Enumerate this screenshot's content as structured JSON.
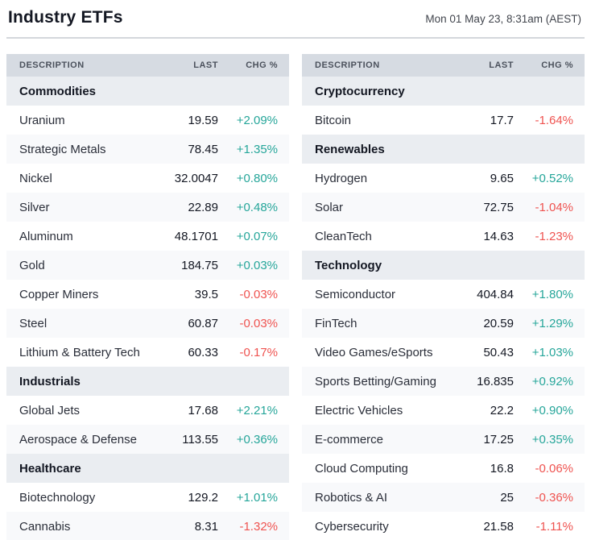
{
  "header": {
    "title": "Industry ETFs",
    "timestamp": "Mon 01 May 23, 8:31am (AEST)"
  },
  "columns": {
    "description": "DESCRIPTION",
    "last": "LAST",
    "chg": "CHG %"
  },
  "colors": {
    "positive": "#26a69a",
    "negative": "#ef5350"
  },
  "tables": [
    {
      "id": "left",
      "sections": [
        {
          "name": "Commodities",
          "rows": [
            {
              "label": "Uranium",
              "last": "19.59",
              "chg": "+2.09%",
              "direction": "up"
            },
            {
              "label": "Strategic Metals",
              "last": "78.45",
              "chg": "+1.35%",
              "direction": "up"
            },
            {
              "label": "Nickel",
              "last": "32.0047",
              "chg": "+0.80%",
              "direction": "up"
            },
            {
              "label": "Silver",
              "last": "22.89",
              "chg": "+0.48%",
              "direction": "up"
            },
            {
              "label": "Aluminum",
              "last": "48.1701",
              "chg": "+0.07%",
              "direction": "up"
            },
            {
              "label": "Gold",
              "last": "184.75",
              "chg": "+0.03%",
              "direction": "up"
            },
            {
              "label": "Copper Miners",
              "last": "39.5",
              "chg": "-0.03%",
              "direction": "down"
            },
            {
              "label": "Steel",
              "last": "60.87",
              "chg": "-0.03%",
              "direction": "down"
            },
            {
              "label": "Lithium & Battery Tech",
              "last": "60.33",
              "chg": "-0.17%",
              "direction": "down"
            }
          ]
        },
        {
          "name": "Industrials",
          "rows": [
            {
              "label": "Global Jets",
              "last": "17.68",
              "chg": "+2.21%",
              "direction": "up"
            },
            {
              "label": "Aerospace & Defense",
              "last": "113.55",
              "chg": "+0.36%",
              "direction": "up"
            }
          ]
        },
        {
          "name": "Healthcare",
          "rows": [
            {
              "label": "Biotechnology",
              "last": "129.2",
              "chg": "+1.01%",
              "direction": "up"
            },
            {
              "label": "Cannabis",
              "last": "8.31",
              "chg": "-1.32%",
              "direction": "down"
            }
          ]
        }
      ]
    },
    {
      "id": "right",
      "sections": [
        {
          "name": "Cryptocurrency",
          "rows": [
            {
              "label": "Bitcoin",
              "last": "17.7",
              "chg": "-1.64%",
              "direction": "down"
            }
          ]
        },
        {
          "name": "Renewables",
          "rows": [
            {
              "label": "Hydrogen",
              "last": "9.65",
              "chg": "+0.52%",
              "direction": "up"
            },
            {
              "label": "Solar",
              "last": "72.75",
              "chg": "-1.04%",
              "direction": "down"
            },
            {
              "label": "CleanTech",
              "last": "14.63",
              "chg": "-1.23%",
              "direction": "down"
            }
          ]
        },
        {
          "name": "Technology",
          "rows": [
            {
              "label": "Semiconductor",
              "last": "404.84",
              "chg": "+1.80%",
              "direction": "up"
            },
            {
              "label": "FinTech",
              "last": "20.59",
              "chg": "+1.29%",
              "direction": "up"
            },
            {
              "label": "Video Games/eSports",
              "last": "50.43",
              "chg": "+1.03%",
              "direction": "up"
            },
            {
              "label": "Sports Betting/Gaming",
              "last": "16.835",
              "chg": "+0.92%",
              "direction": "up"
            },
            {
              "label": "Electric Vehicles",
              "last": "22.2",
              "chg": "+0.90%",
              "direction": "up"
            },
            {
              "label": "E-commerce",
              "last": "17.25",
              "chg": "+0.35%",
              "direction": "up"
            },
            {
              "label": "Cloud Computing",
              "last": "16.8",
              "chg": "-0.06%",
              "direction": "down"
            },
            {
              "label": "Robotics & AI",
              "last": "25",
              "chg": "-0.36%",
              "direction": "down"
            },
            {
              "label": "Cybersecurity",
              "last": "21.58",
              "chg": "-1.11%",
              "direction": "down"
            }
          ]
        }
      ]
    }
  ]
}
